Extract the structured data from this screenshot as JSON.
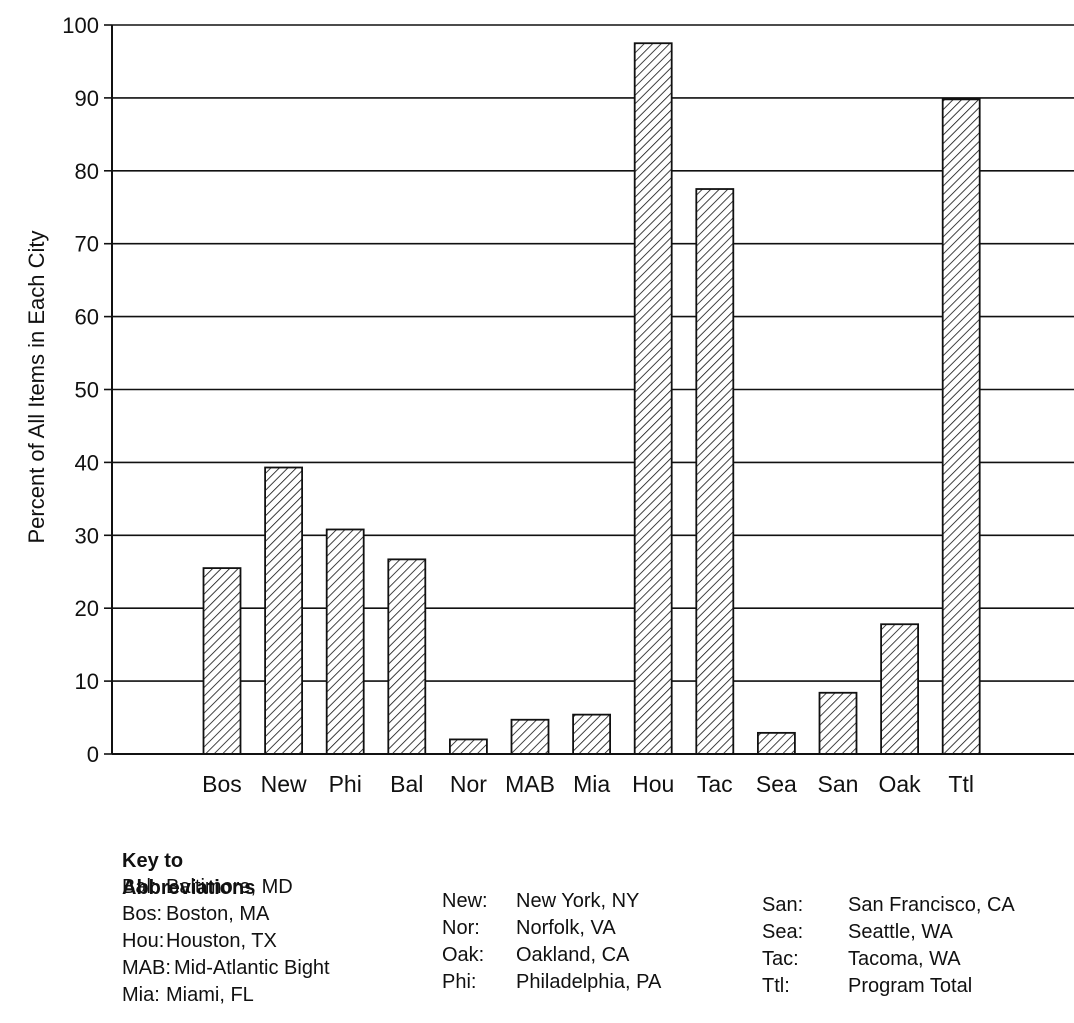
{
  "chart_data": {
    "type": "bar",
    "title": "",
    "xlabel": "",
    "ylabel": "Percent of All Items in Each City",
    "ylim": [
      0,
      100
    ],
    "yticks": [
      0,
      10,
      20,
      30,
      40,
      50,
      60,
      70,
      80,
      90,
      100
    ],
    "grid": true,
    "bar_fill": "diagonal-hatch",
    "categories": [
      "Bos",
      "New",
      "Phi",
      "Bal",
      "Nor",
      "MAB",
      "Mia",
      "Hou",
      "Tac",
      "Sea",
      "San",
      "Oak",
      "Ttl"
    ],
    "values": [
      25.5,
      39.3,
      30.8,
      26.7,
      2.0,
      4.7,
      5.4,
      97.5,
      77.5,
      2.9,
      8.4,
      17.8,
      89.8
    ]
  },
  "key": {
    "title": "Key to Abbreviations",
    "columns": [
      [
        {
          "abbr": "Bal:",
          "name": "Baltimore, MD"
        },
        {
          "abbr": "Bos:",
          "name": "Boston, MA"
        },
        {
          "abbr": "Hou:",
          "name": "Houston, TX"
        },
        {
          "abbr": "MAB:",
          "name": "Mid-Atlantic Bight"
        },
        {
          "abbr": "Mia:",
          "name": "Miami, FL"
        }
      ],
      [
        {
          "abbr": "New:",
          "name": "New York, NY"
        },
        {
          "abbr": "Nor:",
          "name": "Norfolk, VA"
        },
        {
          "abbr": "Oak:",
          "name": "Oakland, CA"
        },
        {
          "abbr": "Phi:",
          "name": "Philadelphia, PA"
        }
      ],
      [
        {
          "abbr": "San:",
          "name": "San Francisco, CA"
        },
        {
          "abbr": "Sea:",
          "name": "Seattle, WA"
        },
        {
          "abbr": "Tac:",
          "name": "Tacoma, WA"
        },
        {
          "abbr": "Ttl:",
          "name": "Program Total"
        }
      ]
    ]
  },
  "colors": {
    "ink": "#111111",
    "background": "#ffffff"
  }
}
